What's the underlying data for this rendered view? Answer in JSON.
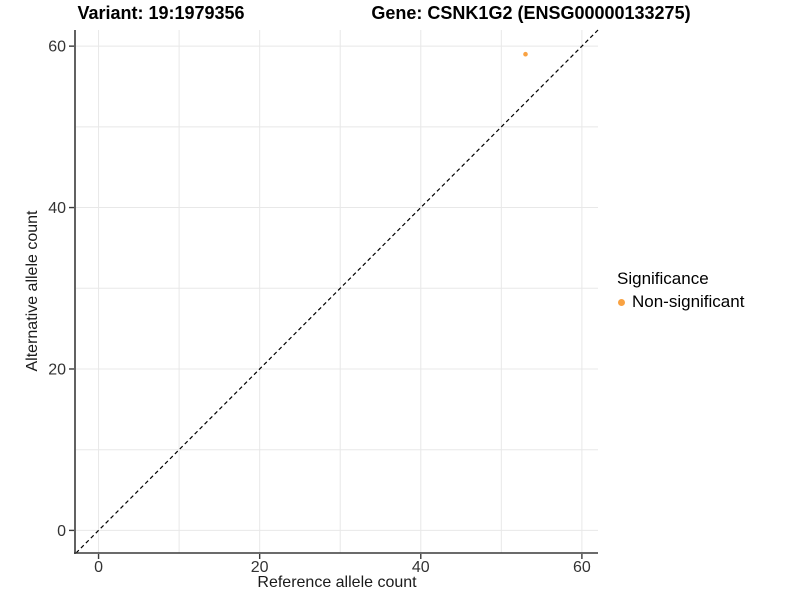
{
  "chart_data": {
    "type": "scatter",
    "title_left": "Variant: 19:1979356",
    "title_right": "Gene: CSNK1G2 (ENSG00000133275)",
    "xlabel": "Reference allele count",
    "ylabel": "Alternative allele count",
    "xlim": [
      -2.8,
      62
    ],
    "ylim": [
      -2.8,
      62
    ],
    "x_ticks": [
      0,
      20,
      40,
      60
    ],
    "y_ticks": [
      0,
      20,
      40,
      60
    ],
    "grid": true,
    "grid_step": 10,
    "grid_range": [
      0,
      60
    ],
    "reference_line": {
      "type": "identity y=x",
      "style": "dashed",
      "color": "#000000"
    },
    "legend": {
      "title": "Significance",
      "position": "right",
      "items": [
        {
          "label": "Non-significant",
          "color": "#F9A242"
        }
      ]
    },
    "series": [
      {
        "name": "Non-significant",
        "color": "#F9A242",
        "points": [
          {
            "x": 53,
            "y": 59
          }
        ]
      }
    ]
  }
}
